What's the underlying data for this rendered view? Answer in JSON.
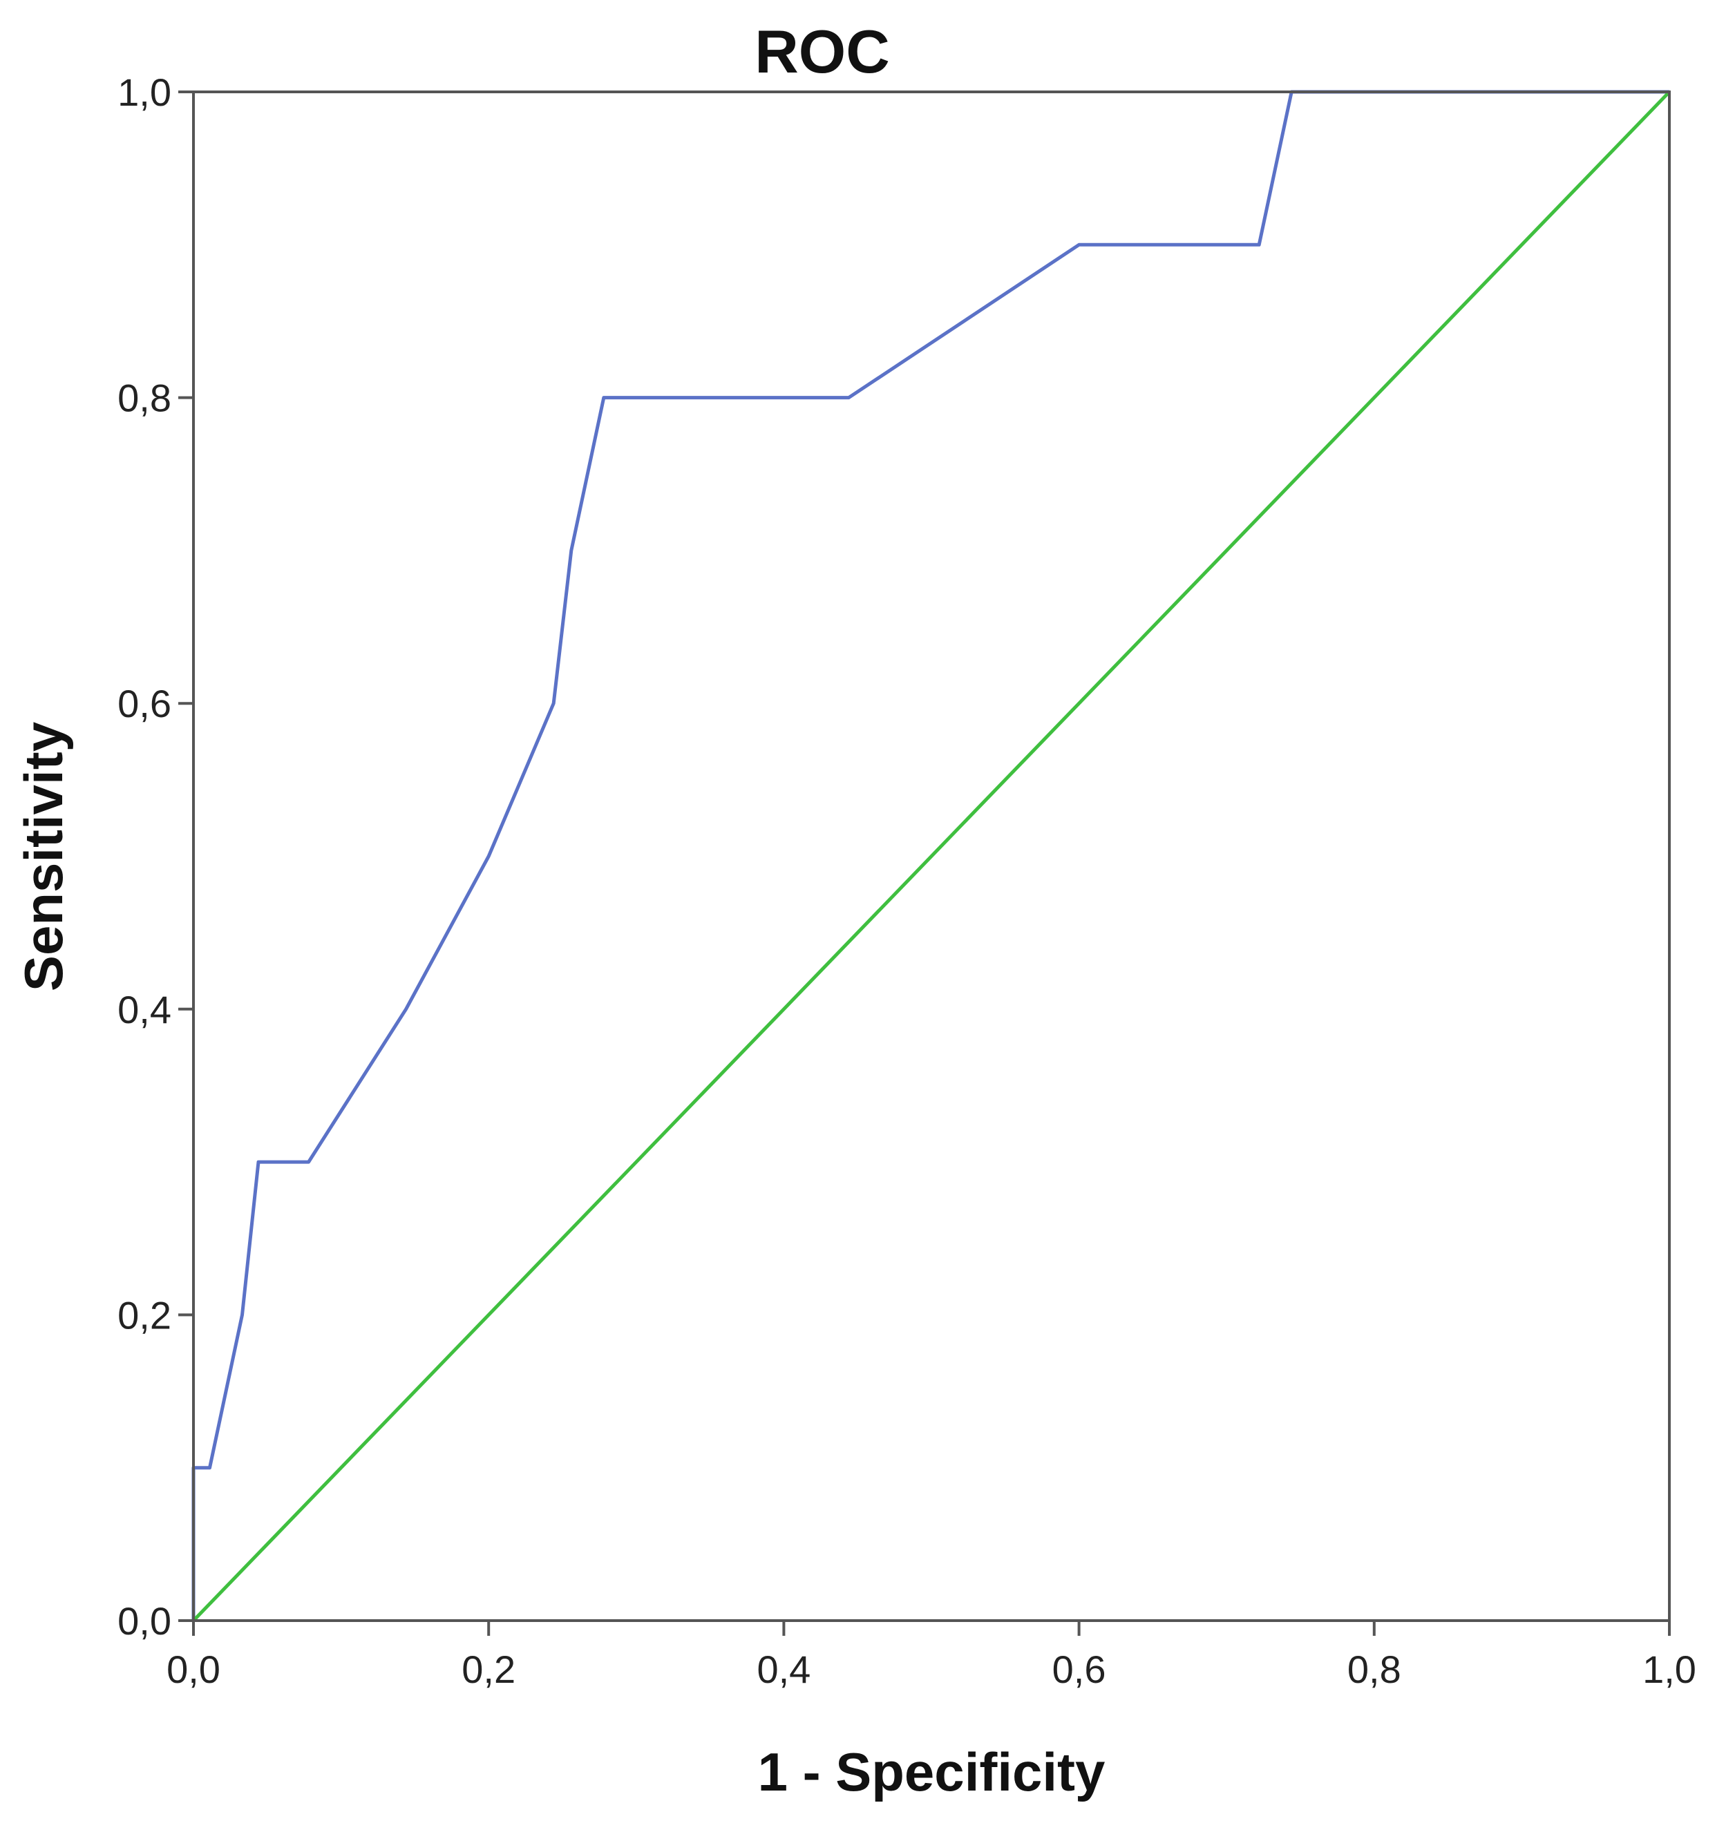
{
  "chart_data": {
    "type": "line",
    "title": "ROC",
    "xlabel": "1 - Specificity",
    "ylabel": "Sensitivity",
    "xlim": [
      0,
      1
    ],
    "ylim": [
      0,
      1
    ],
    "xticks": [
      "0,0",
      "0,2",
      "0,4",
      "0,6",
      "0,8",
      "1,0"
    ],
    "yticks": [
      "0,0",
      "0,2",
      "0,4",
      "0,6",
      "0,8",
      "1,0"
    ],
    "grid": false,
    "series": [
      {
        "color": "#5b72c7",
        "x": [
          0.0,
          0.0,
          0.011,
          0.033,
          0.044,
          0.078,
          0.144,
          0.2,
          0.244,
          0.256,
          0.278,
          0.444,
          0.6,
          0.722,
          0.744,
          1.0
        ],
        "y": [
          0.0,
          0.1,
          0.1,
          0.2,
          0.3,
          0.3,
          0.4,
          0.5,
          0.6,
          0.7,
          0.8,
          0.8,
          0.9,
          0.9,
          1.0,
          1.0
        ]
      },
      {
        "color": "#3fbf3f",
        "x": [
          0.0,
          1.0
        ],
        "y": [
          0.0,
          1.0
        ]
      }
    ]
  }
}
